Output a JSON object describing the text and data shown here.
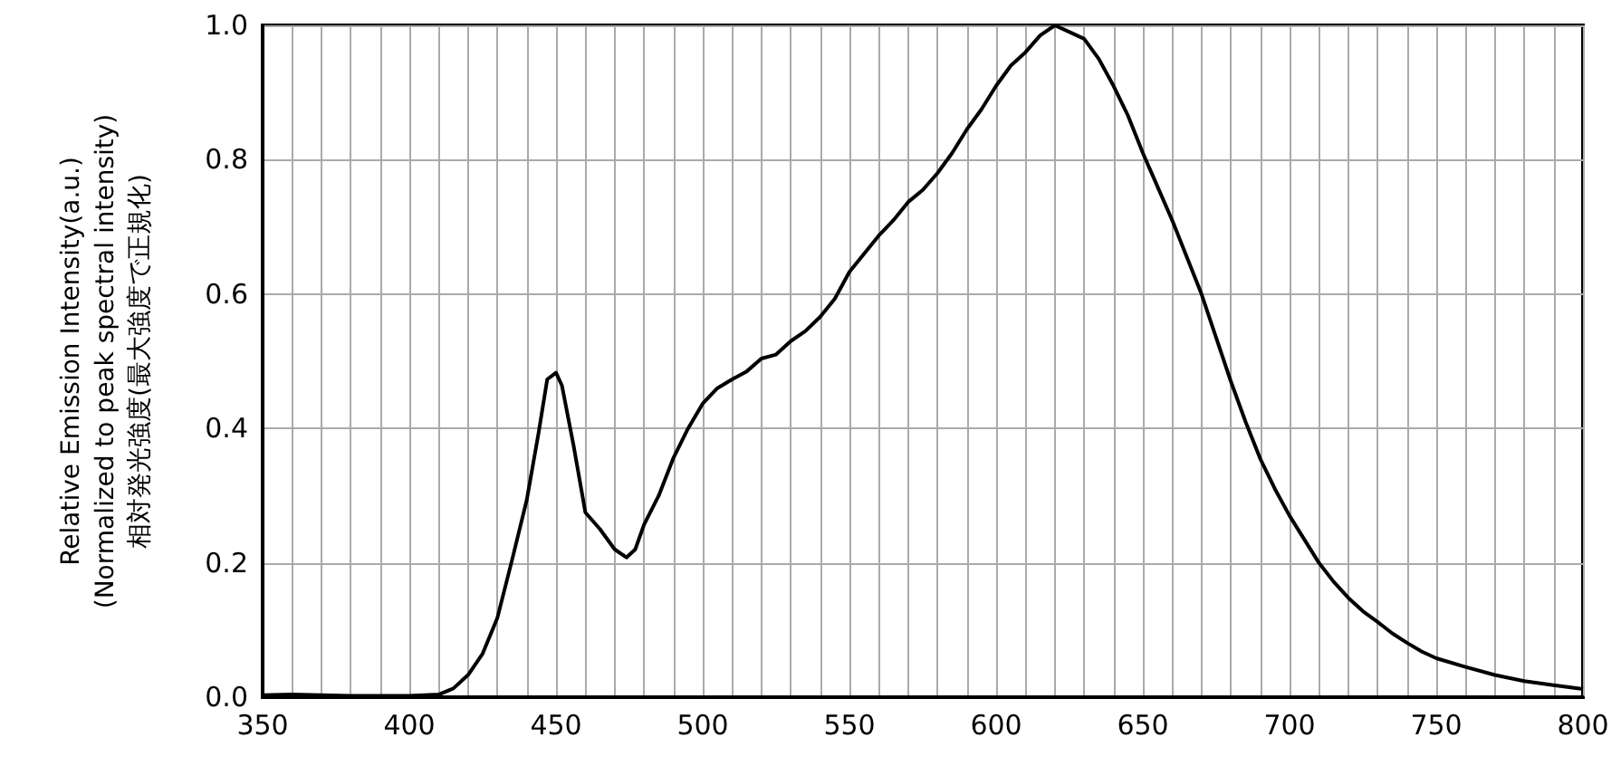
{
  "chart_data": {
    "type": "line",
    "ylabel": "Relative Emission Intensity(a.u.)\n(Normalized to peak spectral intensity)\n相対発光強度(最大強度で正規化)",
    "xlim": [
      350,
      800
    ],
    "ylim": [
      0,
      1
    ],
    "xticks": [
      350,
      {
        "value": 360,
        "label": null
      },
      {
        "value": 370,
        "label": null
      },
      {
        "value": 380,
        "label": null
      },
      {
        "value": 390,
        "label": null
      },
      400,
      {
        "value": 410,
        "label": null
      },
      {
        "value": 420,
        "label": null
      },
      {
        "value": 430,
        "label": null
      },
      {
        "value": 440,
        "label": null
      },
      450,
      {
        "value": 460,
        "label": null
      },
      {
        "value": 470,
        "label": null
      },
      {
        "value": 480,
        "label": null
      },
      {
        "value": 490,
        "label": null
      },
      500,
      {
        "value": 510,
        "label": null
      },
      {
        "value": 520,
        "label": null
      },
      {
        "value": 530,
        "label": null
      },
      {
        "value": 540,
        "label": null
      },
      550,
      {
        "value": 560,
        "label": null
      },
      {
        "value": 570,
        "label": null
      },
      {
        "value": 580,
        "label": null
      },
      {
        "value": 590,
        "label": null
      },
      600,
      {
        "value": 610,
        "label": null
      },
      {
        "value": 620,
        "label": null
      },
      {
        "value": 630,
        "label": null
      },
      {
        "value": 640,
        "label": null
      },
      650,
      {
        "value": 660,
        "label": null
      },
      {
        "value": 670,
        "label": null
      },
      {
        "value": 680,
        "label": null
      },
      {
        "value": 690,
        "label": null
      },
      700,
      {
        "value": 710,
        "label": null
      },
      {
        "value": 720,
        "label": null
      },
      {
        "value": 730,
        "label": null
      },
      {
        "value": 740,
        "label": null
      },
      750,
      {
        "value": 760,
        "label": null
      },
      {
        "value": 770,
        "label": null
      },
      {
        "value": 780,
        "label": null
      },
      {
        "value": 790,
        "label": null
      },
      800
    ],
    "yticks": [
      {
        "value": 0,
        "label": "0.0"
      },
      {
        "value": 0.2,
        "label": "0.2"
      },
      {
        "value": 0.4,
        "label": "0.4"
      },
      {
        "value": 0.6,
        "label": "0.6"
      },
      {
        "value": 0.8,
        "label": "0.8"
      },
      {
        "value": 1,
        "label": "1.0"
      }
    ],
    "grid": true,
    "marker": "none",
    "line_style": "solid",
    "series": [
      {
        "color": "#000000",
        "x": [
          350,
          360,
          370,
          380,
          390,
          400,
          405,
          410,
          415,
          420,
          425,
          430,
          435,
          440,
          444,
          447,
          450,
          452,
          456,
          460,
          465,
          470,
          474,
          477,
          480,
          485,
          490,
          495,
          500,
          505,
          510,
          515,
          520,
          525,
          530,
          535,
          540,
          545,
          550,
          555,
          560,
          565,
          570,
          575,
          580,
          585,
          590,
          595,
          600,
          605,
          610,
          615,
          620,
          625,
          630,
          635,
          640,
          645,
          650,
          655,
          660,
          665,
          670,
          675,
          680,
          685,
          690,
          695,
          700,
          705,
          710,
          715,
          720,
          725,
          730,
          735,
          740,
          745,
          750,
          760,
          770,
          780,
          790,
          800
        ],
        "values": [
          0.003,
          0.004,
          0.003,
          0.002,
          0.002,
          0.002,
          0.003,
          0.004,
          0.013,
          0.033,
          0.065,
          0.118,
          0.204,
          0.293,
          0.392,
          0.473,
          0.483,
          0.464,
          0.374,
          0.275,
          0.25,
          0.22,
          0.208,
          0.22,
          0.257,
          0.3,
          0.356,
          0.4,
          0.437,
          0.46,
          0.473,
          0.485,
          0.504,
          0.51,
          0.53,
          0.545,
          0.566,
          0.593,
          0.633,
          0.66,
          0.687,
          0.71,
          0.737,
          0.755,
          0.78,
          0.81,
          0.845,
          0.875,
          0.91,
          0.94,
          0.96,
          0.985,
          1.0,
          0.99,
          0.98,
          0.95,
          0.91,
          0.865,
          0.81,
          0.76,
          0.71,
          0.655,
          0.6,
          0.535,
          0.47,
          0.41,
          0.355,
          0.31,
          0.27,
          0.235,
          0.2,
          0.172,
          0.148,
          0.128,
          0.112,
          0.095,
          0.081,
          0.068,
          0.058,
          0.045,
          0.033,
          0.024,
          0.018,
          0.012
        ]
      }
    ]
  }
}
